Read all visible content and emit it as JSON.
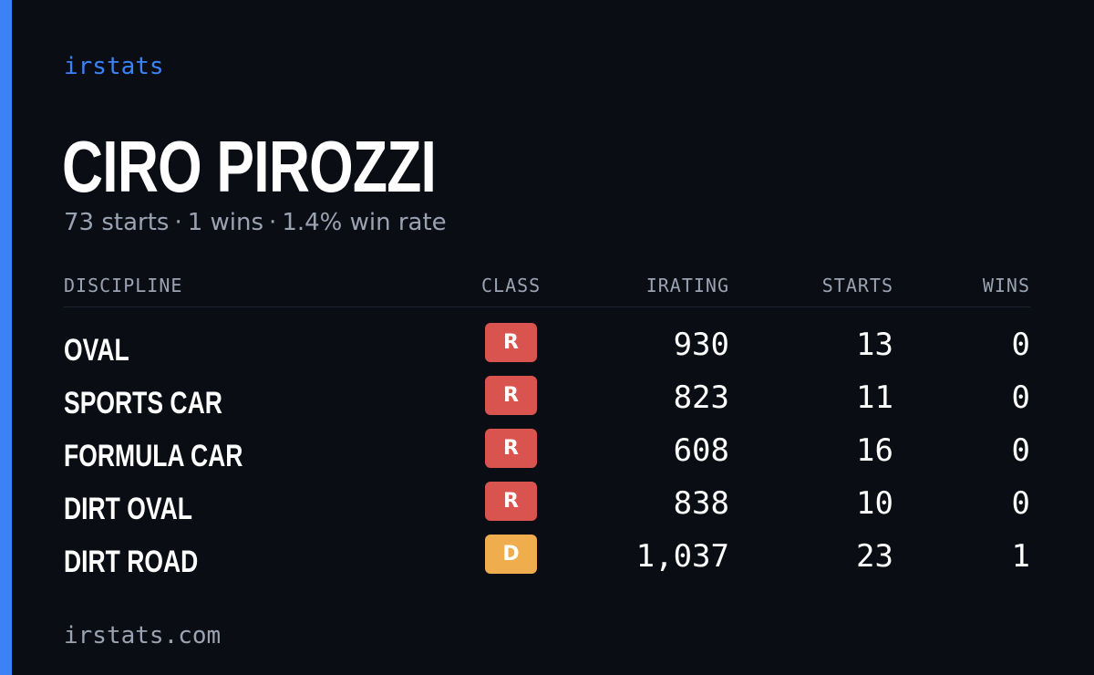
{
  "brand": "irstats",
  "driver": {
    "name": "CIRO PIROZZI",
    "summary": {
      "starts": "73 starts",
      "wins": "1 wins",
      "win_rate": "1.4% win rate",
      "separator": "·"
    }
  },
  "table": {
    "headers": {
      "discipline": "DISCIPLINE",
      "class": "CLASS",
      "irating": "IRATING",
      "starts": "STARTS",
      "wins": "WINS"
    },
    "rows": [
      {
        "discipline": "OVAL",
        "class": "R",
        "irating": "930",
        "starts": "13",
        "wins": "0"
      },
      {
        "discipline": "SPORTS CAR",
        "class": "R",
        "irating": "823",
        "starts": "11",
        "wins": "0"
      },
      {
        "discipline": "FORMULA CAR",
        "class": "R",
        "irating": "608",
        "starts": "16",
        "wins": "0"
      },
      {
        "discipline": "DIRT OVAL",
        "class": "R",
        "irating": "838",
        "starts": "10",
        "wins": "0"
      },
      {
        "discipline": "DIRT ROAD",
        "class": "D",
        "irating": "1,037",
        "starts": "23",
        "wins": "1"
      }
    ]
  },
  "footer": "irstats.com",
  "colors": {
    "background": "#0b0d14",
    "accent": "#3b82f6",
    "class_r": "#d9534f",
    "class_d": "#f0ad4e",
    "muted_text": "#9aa3b2"
  }
}
